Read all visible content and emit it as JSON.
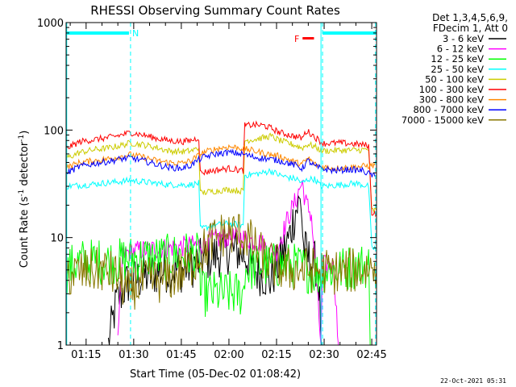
{
  "chart_data": {
    "type": "line",
    "title": "RHESSI Observing Summary Count Rates",
    "xlabel": "Start Time (05-Dec-02 01:08:42)",
    "ylabel_main": "Count Rate (s",
    "ylabel_sup1": "-1",
    "ylabel_mid": " detector",
    "ylabel_sup2": "-1",
    "ylabel_end": ")",
    "xlim_min": [
      68.7,
      166.5
    ],
    "ylim": [
      1,
      1000
    ],
    "yscale": "log",
    "x_ticks": [
      {
        "value": 75,
        "label": "01:15"
      },
      {
        "value": 90,
        "label": "01:30"
      },
      {
        "value": 105,
        "label": "01:45"
      },
      {
        "value": 120,
        "label": "02:00"
      },
      {
        "value": 135,
        "label": "02:15"
      },
      {
        "value": 150,
        "label": "02:30"
      },
      {
        "value": 165,
        "label": "02:45"
      }
    ],
    "y_ticks": [
      {
        "value": 1,
        "label": "1"
      },
      {
        "value": 10,
        "label": "10"
      },
      {
        "value": 100,
        "label": "100"
      },
      {
        "value": 1000,
        "label": "1000"
      }
    ],
    "legend_header": [
      "Det 1,3,4,5,6,9,",
      "FDecim 1, Att 0"
    ],
    "legend_position": "top-right-outside",
    "timestamp": "22-Oct-2021 05:31",
    "flag_labels": {
      "night": "N",
      "flare": "F"
    },
    "night_flags": [
      [
        68.7,
        88.5
      ],
      [
        149.5,
        166.5
      ]
    ],
    "flare_flag": [
      143.2,
      146.8
    ],
    "dashed_markers": [
      89.0,
      149.5,
      166.2
    ],
    "solid_markers": [
      68.9,
      149.0
    ],
    "series": [
      {
        "name": "3 - 6 keV",
        "color": "#000000",
        "points": [
          [
            82,
            1
          ],
          [
            84.5,
            2.5
          ],
          [
            88,
            3.8
          ],
          [
            95,
            4.5
          ],
          [
            100,
            5
          ],
          [
            105,
            5
          ],
          [
            108,
            5.5
          ],
          [
            111,
            6
          ],
          [
            114,
            6.5
          ],
          [
            117,
            7
          ],
          [
            120,
            7.5
          ],
          [
            123,
            7.5
          ],
          [
            126,
            6.5
          ],
          [
            128,
            5
          ],
          [
            131,
            4.5
          ],
          [
            133,
            4
          ],
          [
            136,
            6
          ],
          [
            139,
            10
          ],
          [
            141,
            18
          ],
          [
            142.7,
            22
          ],
          [
            143.5,
            8
          ],
          [
            145.5,
            6
          ],
          [
            148,
            5.5
          ],
          [
            149.2,
            1
          ]
        ]
      },
      {
        "name": "6 - 12 keV",
        "color": "#ff00ff",
        "points": [
          [
            85,
            1
          ],
          [
            86.5,
            7
          ],
          [
            90,
            7.5
          ],
          [
            100,
            8
          ],
          [
            110,
            8.5
          ],
          [
            115,
            9.5
          ],
          [
            118,
            10
          ],
          [
            121,
            10
          ],
          [
            124,
            10
          ],
          [
            127,
            9.5
          ],
          [
            130,
            9
          ],
          [
            133,
            7.5
          ],
          [
            135,
            7.5
          ],
          [
            136.5,
            10
          ],
          [
            138.5,
            15
          ],
          [
            141,
            22
          ],
          [
            142.5,
            30
          ],
          [
            143.2,
            32
          ],
          [
            144,
            22
          ],
          [
            146,
            16
          ],
          [
            149,
            1
          ],
          [
            149.5,
            5.5
          ],
          [
            153,
            5.5
          ],
          [
            154.5,
            1
          ]
        ]
      },
      {
        "name": "12 - 25 keV",
        "color": "#00ff00",
        "points": [
          [
            69,
            5
          ],
          [
            73,
            6
          ],
          [
            80,
            6
          ],
          [
            85,
            6
          ],
          [
            90,
            6.5
          ],
          [
            95,
            6.5
          ],
          [
            100,
            6.5
          ],
          [
            105,
            7
          ],
          [
            109,
            7
          ],
          [
            110.8,
            6.5
          ],
          [
            111,
            3
          ],
          [
            115,
            3
          ],
          [
            120,
            3
          ],
          [
            124.5,
            3
          ],
          [
            125,
            5
          ],
          [
            130,
            5.5
          ],
          [
            135,
            5.5
          ],
          [
            140,
            5.5
          ],
          [
            145,
            5
          ],
          [
            149,
            4.5
          ],
          [
            150,
            5
          ],
          [
            155,
            5
          ],
          [
            160,
            5.5
          ],
          [
            164,
            5.5
          ],
          [
            164.5,
            1
          ]
        ]
      },
      {
        "name": "25 - 50 keV",
        "color": "#00ffff",
        "points": [
          [
            69,
            30
          ],
          [
            75,
            31
          ],
          [
            80,
            32
          ],
          [
            85,
            33
          ],
          [
            89,
            34
          ],
          [
            93,
            33
          ],
          [
            97,
            32
          ],
          [
            101,
            31
          ],
          [
            105,
            31
          ],
          [
            108,
            31
          ],
          [
            110.5,
            32
          ],
          [
            111,
            12
          ],
          [
            115,
            13
          ],
          [
            120,
            13.5
          ],
          [
            124.5,
            13
          ],
          [
            125,
            38
          ],
          [
            128,
            39
          ],
          [
            131,
            40
          ],
          [
            133,
            42
          ],
          [
            136,
            38
          ],
          [
            139,
            36
          ],
          [
            141.5,
            35
          ],
          [
            143,
            32
          ],
          [
            145,
            35
          ],
          [
            147,
            35
          ],
          [
            149,
            30
          ],
          [
            150,
            30
          ],
          [
            155,
            31
          ],
          [
            160,
            32
          ],
          [
            164,
            30
          ],
          [
            165,
            8
          ],
          [
            166.5,
            8
          ]
        ]
      },
      {
        "name": "50 - 100 keV",
        "color": "#cccc00",
        "points": [
          [
            69,
            55
          ],
          [
            73,
            62
          ],
          [
            78,
            66
          ],
          [
            82,
            68
          ],
          [
            86,
            72
          ],
          [
            89,
            76
          ],
          [
            93,
            73
          ],
          [
            97,
            69
          ],
          [
            101,
            64
          ],
          [
            105,
            63
          ],
          [
            108,
            64
          ],
          [
            110.5,
            68
          ],
          [
            111,
            26
          ],
          [
            115,
            27
          ],
          [
            120,
            28
          ],
          [
            124.5,
            27
          ],
          [
            125,
            80
          ],
          [
            128,
            82
          ],
          [
            131,
            85
          ],
          [
            133,
            88
          ],
          [
            136,
            80
          ],
          [
            139,
            75
          ],
          [
            141,
            72
          ],
          [
            143,
            68
          ],
          [
            145,
            74
          ],
          [
            147,
            70
          ],
          [
            149,
            65
          ],
          [
            150,
            64
          ],
          [
            155,
            65
          ],
          [
            160,
            65
          ],
          [
            164,
            66
          ],
          [
            165,
            18
          ],
          [
            166.5,
            18
          ]
        ]
      },
      {
        "name": "100 - 300 keV",
        "color": "#ff0000",
        "points": [
          [
            69,
            68
          ],
          [
            73,
            78
          ],
          [
            78,
            82
          ],
          [
            82,
            85
          ],
          [
            86,
            90
          ],
          [
            89,
            95
          ],
          [
            93,
            90
          ],
          [
            97,
            84
          ],
          [
            101,
            80
          ],
          [
            105,
            78
          ],
          [
            108,
            80
          ],
          [
            110.5,
            85
          ],
          [
            111,
            40
          ],
          [
            115,
            42
          ],
          [
            120,
            44
          ],
          [
            124.5,
            42
          ],
          [
            125,
            110
          ],
          [
            128,
            112
          ],
          [
            131,
            110
          ],
          [
            133,
            105
          ],
          [
            136,
            95
          ],
          [
            139,
            90
          ],
          [
            141,
            87
          ],
          [
            143,
            84
          ],
          [
            144.5,
            98
          ],
          [
            146,
            92
          ],
          [
            147.5,
            84
          ],
          [
            149,
            78
          ],
          [
            150,
            75
          ],
          [
            155,
            76
          ],
          [
            160,
            74
          ],
          [
            164,
            72
          ],
          [
            165,
            17
          ],
          [
            166.5,
            17
          ]
        ]
      },
      {
        "name": "300 - 800 keV",
        "color": "#ff8800",
        "points": [
          [
            69,
            45
          ],
          [
            73,
            50
          ],
          [
            78,
            52
          ],
          [
            82,
            54
          ],
          [
            86,
            57
          ],
          [
            89,
            59
          ],
          [
            93,
            56
          ],
          [
            97,
            52
          ],
          [
            101,
            50
          ],
          [
            105,
            49
          ],
          [
            108,
            52
          ],
          [
            110.5,
            58
          ],
          [
            112,
            62
          ],
          [
            116,
            67
          ],
          [
            120,
            70
          ],
          [
            124,
            68
          ],
          [
            128,
            64
          ],
          [
            132,
            60
          ],
          [
            136,
            57
          ],
          [
            139,
            53
          ],
          [
            141,
            50
          ],
          [
            143,
            48
          ],
          [
            145,
            55
          ],
          [
            147,
            48
          ],
          [
            149,
            46
          ],
          [
            153,
            44
          ],
          [
            158,
            45
          ],
          [
            162,
            46
          ],
          [
            166,
            47
          ]
        ]
      },
      {
        "name": "800 - 7000 keV",
        "color": "#0000ff",
        "points": [
          [
            69,
            40
          ],
          [
            73,
            46
          ],
          [
            78,
            49
          ],
          [
            82,
            51
          ],
          [
            86,
            54
          ],
          [
            89,
            55
          ],
          [
            93,
            52
          ],
          [
            97,
            48
          ],
          [
            101,
            45
          ],
          [
            105,
            44
          ],
          [
            108,
            47
          ],
          [
            110.5,
            53
          ],
          [
            112,
            56
          ],
          [
            116,
            60
          ],
          [
            120,
            62
          ],
          [
            124,
            60
          ],
          [
            128,
            56
          ],
          [
            132,
            54
          ],
          [
            136,
            52
          ],
          [
            139,
            49
          ],
          [
            141,
            47
          ],
          [
            143,
            44
          ],
          [
            145,
            52
          ],
          [
            147,
            46
          ],
          [
            149,
            44
          ],
          [
            153,
            42
          ],
          [
            158,
            43
          ],
          [
            162,
            42
          ],
          [
            166,
            37
          ]
        ]
      },
      {
        "name": "7000 - 15000 keV",
        "color": "#887700",
        "points": [
          [
            69,
            4.5
          ],
          [
            75,
            4.8
          ],
          [
            80,
            5
          ],
          [
            84,
            4.5
          ],
          [
            86,
            4
          ],
          [
            88,
            3
          ],
          [
            90,
            3.5
          ],
          [
            95,
            4
          ],
          [
            100,
            4
          ],
          [
            104,
            4.5
          ],
          [
            108,
            5.5
          ],
          [
            111,
            7
          ],
          [
            114,
            9
          ],
          [
            117,
            10.5
          ],
          [
            120,
            11
          ],
          [
            123,
            11
          ],
          [
            126,
            10
          ],
          [
            128,
            8
          ],
          [
            131,
            6.5
          ],
          [
            134,
            5.5
          ],
          [
            138,
            5
          ],
          [
            141,
            5
          ],
          [
            144,
            5
          ],
          [
            148,
            5
          ],
          [
            152,
            4.8
          ],
          [
            156,
            4.8
          ],
          [
            160,
            5
          ],
          [
            164,
            5.2
          ],
          [
            166.5,
            5.5
          ]
        ]
      }
    ]
  }
}
